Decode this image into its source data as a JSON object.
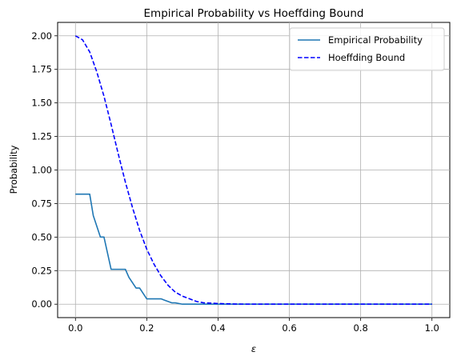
{
  "chart_data": {
    "type": "line",
    "title": "Empirical Probability vs Hoeffding Bound",
    "xlabel": "ε",
    "ylabel": "Probability",
    "xlim": [
      -0.05,
      1.05
    ],
    "ylim": [
      -0.1,
      2.1
    ],
    "xticks": [
      0.0,
      0.2,
      0.4,
      0.6,
      0.8,
      1.0
    ],
    "xtick_labels": [
      "0.0",
      "0.2",
      "0.4",
      "0.6",
      "0.8",
      "1.0"
    ],
    "yticks": [
      0.0,
      0.25,
      0.5,
      0.75,
      1.0,
      1.25,
      1.5,
      1.75,
      2.0
    ],
    "ytick_labels": [
      "0.00",
      "0.25",
      "0.50",
      "0.75",
      "1.00",
      "1.25",
      "1.50",
      "1.75",
      "2.00"
    ],
    "grid": true,
    "legend_position": "top-right",
    "series": [
      {
        "name": "Empirical Probability",
        "color": "#1f77b4",
        "style": "solid",
        "x": [
          0.0,
          0.04,
          0.05,
          0.07,
          0.08,
          0.1,
          0.14,
          0.15,
          0.17,
          0.18,
          0.2,
          0.24,
          0.25,
          0.27,
          0.28,
          0.3,
          0.34,
          0.35,
          0.4,
          1.0
        ],
        "y": [
          0.82,
          0.82,
          0.66,
          0.5,
          0.5,
          0.26,
          0.26,
          0.2,
          0.12,
          0.12,
          0.04,
          0.04,
          0.03,
          0.01,
          0.01,
          0.0,
          0.0,
          0.0,
          0.0,
          0.0
        ]
      },
      {
        "name": "Hoeffding Bound",
        "color": "#0000ff",
        "style": "dashed",
        "x": [
          0.0,
          0.02,
          0.04,
          0.06,
          0.08,
          0.1,
          0.12,
          0.14,
          0.16,
          0.18,
          0.2,
          0.22,
          0.24,
          0.26,
          0.28,
          0.3,
          0.32,
          0.34,
          0.36,
          0.38,
          0.4,
          0.45,
          0.5,
          0.6,
          0.8,
          1.0
        ],
        "y": [
          2.0,
          1.97,
          1.88,
          1.73,
          1.55,
          1.34,
          1.12,
          0.91,
          0.72,
          0.55,
          0.41,
          0.3,
          0.21,
          0.14,
          0.09,
          0.06,
          0.04,
          0.02,
          0.01,
          0.008,
          0.005,
          0.001,
          0.0,
          0.0,
          0.0,
          0.0
        ]
      }
    ]
  }
}
